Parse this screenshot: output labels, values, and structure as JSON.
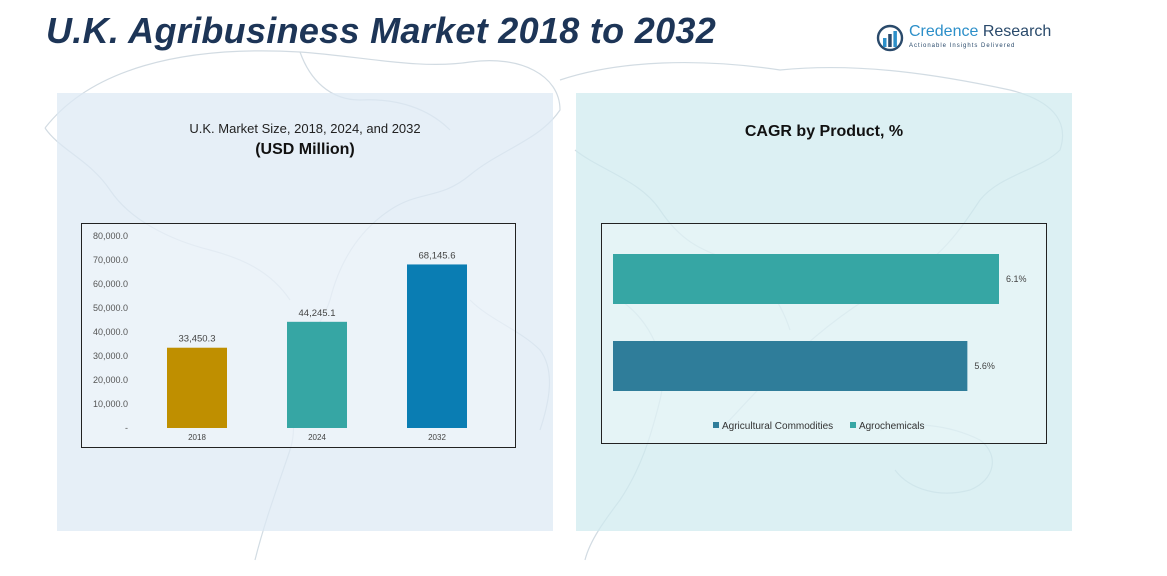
{
  "header": {
    "title": "U.K. Agribusiness Market 2018 to 2032"
  },
  "logo": {
    "name_part1": "Credence",
    "name_part2": " Research",
    "tagline": "Actionable Insights Delivered",
    "icon": "bar-chart-logo-icon"
  },
  "left_panel": {
    "title": "U.K. Market Size, 2018, 2024, and 2032",
    "subtitle": "(USD Million)"
  },
  "right_panel": {
    "title": "CAGR by Product, %"
  },
  "chart_data": [
    {
      "type": "bar",
      "title": "U.K. Market Size, 2018, 2024, and 2032",
      "ylabel": "USD Million",
      "categories": [
        "2018",
        "2024",
        "2032"
      ],
      "values": [
        33450.3,
        44245.1,
        68145.6
      ],
      "value_labels": [
        "33,450.3",
        "44,245.1",
        "68,145.6"
      ],
      "colors": [
        "#bf8f00",
        "#36a6a4",
        "#0a7db3"
      ],
      "ylim": [
        0,
        80000
      ],
      "yticks": [
        0,
        10000,
        20000,
        30000,
        40000,
        50000,
        60000,
        70000,
        80000
      ],
      "ytick_labels": [
        "-",
        "10,000.0",
        "20,000.0",
        "30,000.0",
        "40,000.0",
        "50,000.0",
        "60,000.0",
        "70,000.0",
        "80,000.0"
      ],
      "grid": false,
      "legend": "none"
    },
    {
      "type": "bar",
      "orientation": "horizontal",
      "title": "CAGR by Product, %",
      "categories": [
        "Agrochemicals",
        "Agricultural Commodities"
      ],
      "values": [
        6.1,
        5.6
      ],
      "value_labels": [
        "6.1%",
        "5.6%"
      ],
      "colors": [
        "#36a6a4",
        "#2f7d9a"
      ],
      "series": [
        {
          "name": "Agricultural Commodities",
          "color": "#2f7d9a"
        },
        {
          "name": "Agrochemicals",
          "color": "#36a6a4"
        }
      ],
      "legend": "bottom"
    }
  ]
}
